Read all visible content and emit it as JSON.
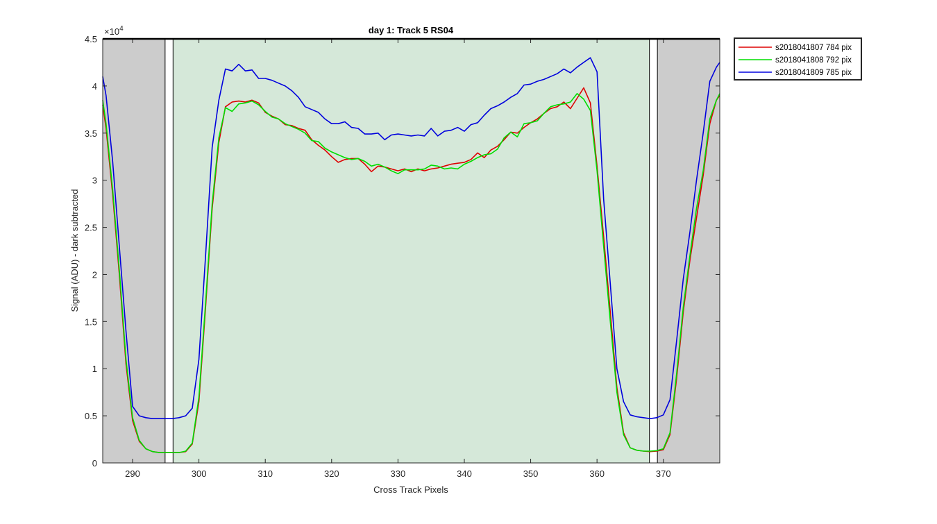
{
  "chart_data": {
    "type": "line",
    "title": "day 1: Track 5  RS04",
    "xlabel": "Cross Track Pixels",
    "ylabel": "Signal (ADU) - dark subtracted",
    "y_exponent_label": "×10",
    "y_exponent_power": "4",
    "xlim": [
      285.5,
      378.5
    ],
    "ylim": [
      0,
      45000
    ],
    "xticks": [
      290,
      300,
      310,
      320,
      330,
      340,
      350,
      360,
      370
    ],
    "yticks": [
      0,
      5000,
      10000,
      15000,
      20000,
      25000,
      30000,
      35000,
      40000,
      45000
    ],
    "ytick_labels": [
      "0",
      "0.5",
      "1",
      "1.5",
      "2",
      "2.5",
      "3",
      "3.5",
      "4",
      "4.5"
    ],
    "grid": false,
    "legend_position": "outside-top-right",
    "shaded_regions": [
      {
        "x_start": 285.5,
        "x_end": 294.9,
        "color": "#cccccc"
      },
      {
        "x_start": 296.1,
        "x_end": 367.9,
        "color": "#d5e8d9"
      },
      {
        "x_start": 369.1,
        "x_end": 378.5,
        "color": "#cccccc"
      }
    ],
    "x": [
      285.5,
      286,
      287,
      288,
      289,
      290,
      291,
      292,
      293,
      294,
      295,
      296,
      297,
      298,
      299,
      300,
      301,
      302,
      303,
      304,
      305,
      306,
      307,
      308,
      309,
      310,
      311,
      312,
      313,
      314,
      315,
      316,
      317,
      318,
      319,
      320,
      321,
      322,
      323,
      324,
      325,
      326,
      327,
      328,
      329,
      330,
      331,
      332,
      333,
      334,
      335,
      336,
      337,
      338,
      339,
      340,
      341,
      342,
      343,
      344,
      345,
      346,
      347,
      348,
      349,
      350,
      351,
      352,
      353,
      354,
      355,
      356,
      357,
      358,
      359,
      360,
      361,
      362,
      363,
      364,
      365,
      366,
      367,
      368,
      369,
      370,
      371,
      372,
      373,
      374,
      375,
      376,
      377,
      378,
      378.5
    ],
    "series": [
      {
        "name": "s2018041807 784 pix",
        "color": "#dd0000",
        "values": [
          38000,
          35500,
          28500,
          20000,
          10500,
          4500,
          2300,
          1500,
          1200,
          1100,
          1100,
          1100,
          1100,
          1200,
          2000,
          6500,
          16500,
          27000,
          34000,
          37800,
          38300,
          38400,
          38300,
          38500,
          38200,
          37200,
          36800,
          36500,
          35900,
          35800,
          35500,
          35300,
          34300,
          33700,
          33200,
          32500,
          31900,
          32200,
          32300,
          32300,
          31700,
          30900,
          31500,
          31400,
          31200,
          31000,
          31200,
          30900,
          31200,
          31000,
          31200,
          31300,
          31500,
          31700,
          31800,
          31900,
          32200,
          32900,
          32400,
          33200,
          33600,
          34300,
          35100,
          35000,
          35600,
          36100,
          36500,
          37100,
          37600,
          37800,
          38300,
          37600,
          38700,
          39800,
          38200,
          31500,
          24000,
          16000,
          8000,
          3200,
          1600,
          1350,
          1250,
          1200,
          1250,
          1400,
          3000,
          9000,
          16000,
          21500,
          26000,
          30500,
          36000,
          38500,
          39000
        ]
      },
      {
        "name": "s2018041808 792 pix",
        "color": "#00dd00",
        "values": [
          38500,
          36000,
          29000,
          20500,
          11000,
          4800,
          2400,
          1500,
          1200,
          1100,
          1100,
          1100,
          1100,
          1250,
          2100,
          7000,
          17000,
          27500,
          34500,
          37700,
          37300,
          38100,
          38200,
          38400,
          38000,
          37300,
          36700,
          36500,
          36000,
          35700,
          35400,
          35000,
          34200,
          34100,
          33400,
          33000,
          32700,
          32400,
          32200,
          32300,
          32000,
          31500,
          31700,
          31400,
          31000,
          30700,
          31100,
          31100,
          31100,
          31200,
          31600,
          31500,
          31200,
          31300,
          31200,
          31700,
          32000,
          32400,
          32700,
          32800,
          33300,
          34500,
          35100,
          34600,
          36000,
          36100,
          36300,
          37100,
          37800,
          38000,
          38100,
          38300,
          39200,
          38600,
          37400,
          31000,
          23000,
          15000,
          7500,
          3000,
          1600,
          1350,
          1250,
          1250,
          1300,
          1500,
          3200,
          9500,
          16500,
          22000,
          27000,
          31000,
          36500,
          38500,
          39200
        ]
      },
      {
        "name": "s2018041809 785 pix",
        "color": "#0000dd",
        "values": [
          41000,
          39000,
          32000,
          23000,
          14000,
          6000,
          5000,
          4800,
          4700,
          4700,
          4700,
          4700,
          4800,
          5000,
          5800,
          11000,
          22000,
          33500,
          38500,
          41800,
          41600,
          42300,
          41600,
          41700,
          40800,
          40800,
          40600,
          40300,
          40000,
          39500,
          38800,
          37800,
          37500,
          37200,
          36500,
          36000,
          36000,
          36200,
          35600,
          35500,
          34900,
          34900,
          35000,
          34300,
          34800,
          34900,
          34800,
          34700,
          34800,
          34700,
          35500,
          34700,
          35200,
          35300,
          35600,
          35200,
          35900,
          36100,
          36900,
          37600,
          37900,
          38300,
          38800,
          39200,
          40100,
          40200,
          40500,
          40700,
          41000,
          41300,
          41800,
          41400,
          42000,
          42500,
          43000,
          41500,
          28000,
          19000,
          10000,
          6500,
          5100,
          4900,
          4800,
          4700,
          4800,
          5100,
          6700,
          13000,
          19500,
          24500,
          30000,
          35000,
          40500,
          42000,
          42500
        ]
      }
    ]
  }
}
